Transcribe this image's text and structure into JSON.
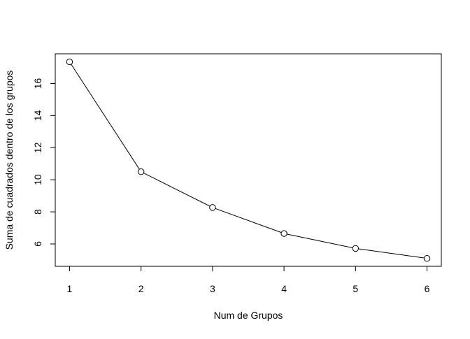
{
  "chart_data": {
    "type": "line",
    "title": "",
    "xlabel": "Num de Grupos",
    "ylabel": "Suma de cuadrados dentro de los grupos",
    "x": [
      1,
      2,
      3,
      4,
      5,
      6
    ],
    "series": [
      {
        "values": [
          17.35,
          10.5,
          8.27,
          6.65,
          5.72,
          5.1
        ]
      }
    ],
    "xticks": [
      1,
      2,
      3,
      4,
      5,
      6
    ],
    "yticks": [
      6,
      8,
      10,
      12,
      14,
      16
    ],
    "xlim": [
      0.8,
      6.2
    ],
    "ylim": [
      4.605,
      17.85
    ],
    "grid": false,
    "markers": "open-circle",
    "line_color": "#000000"
  }
}
